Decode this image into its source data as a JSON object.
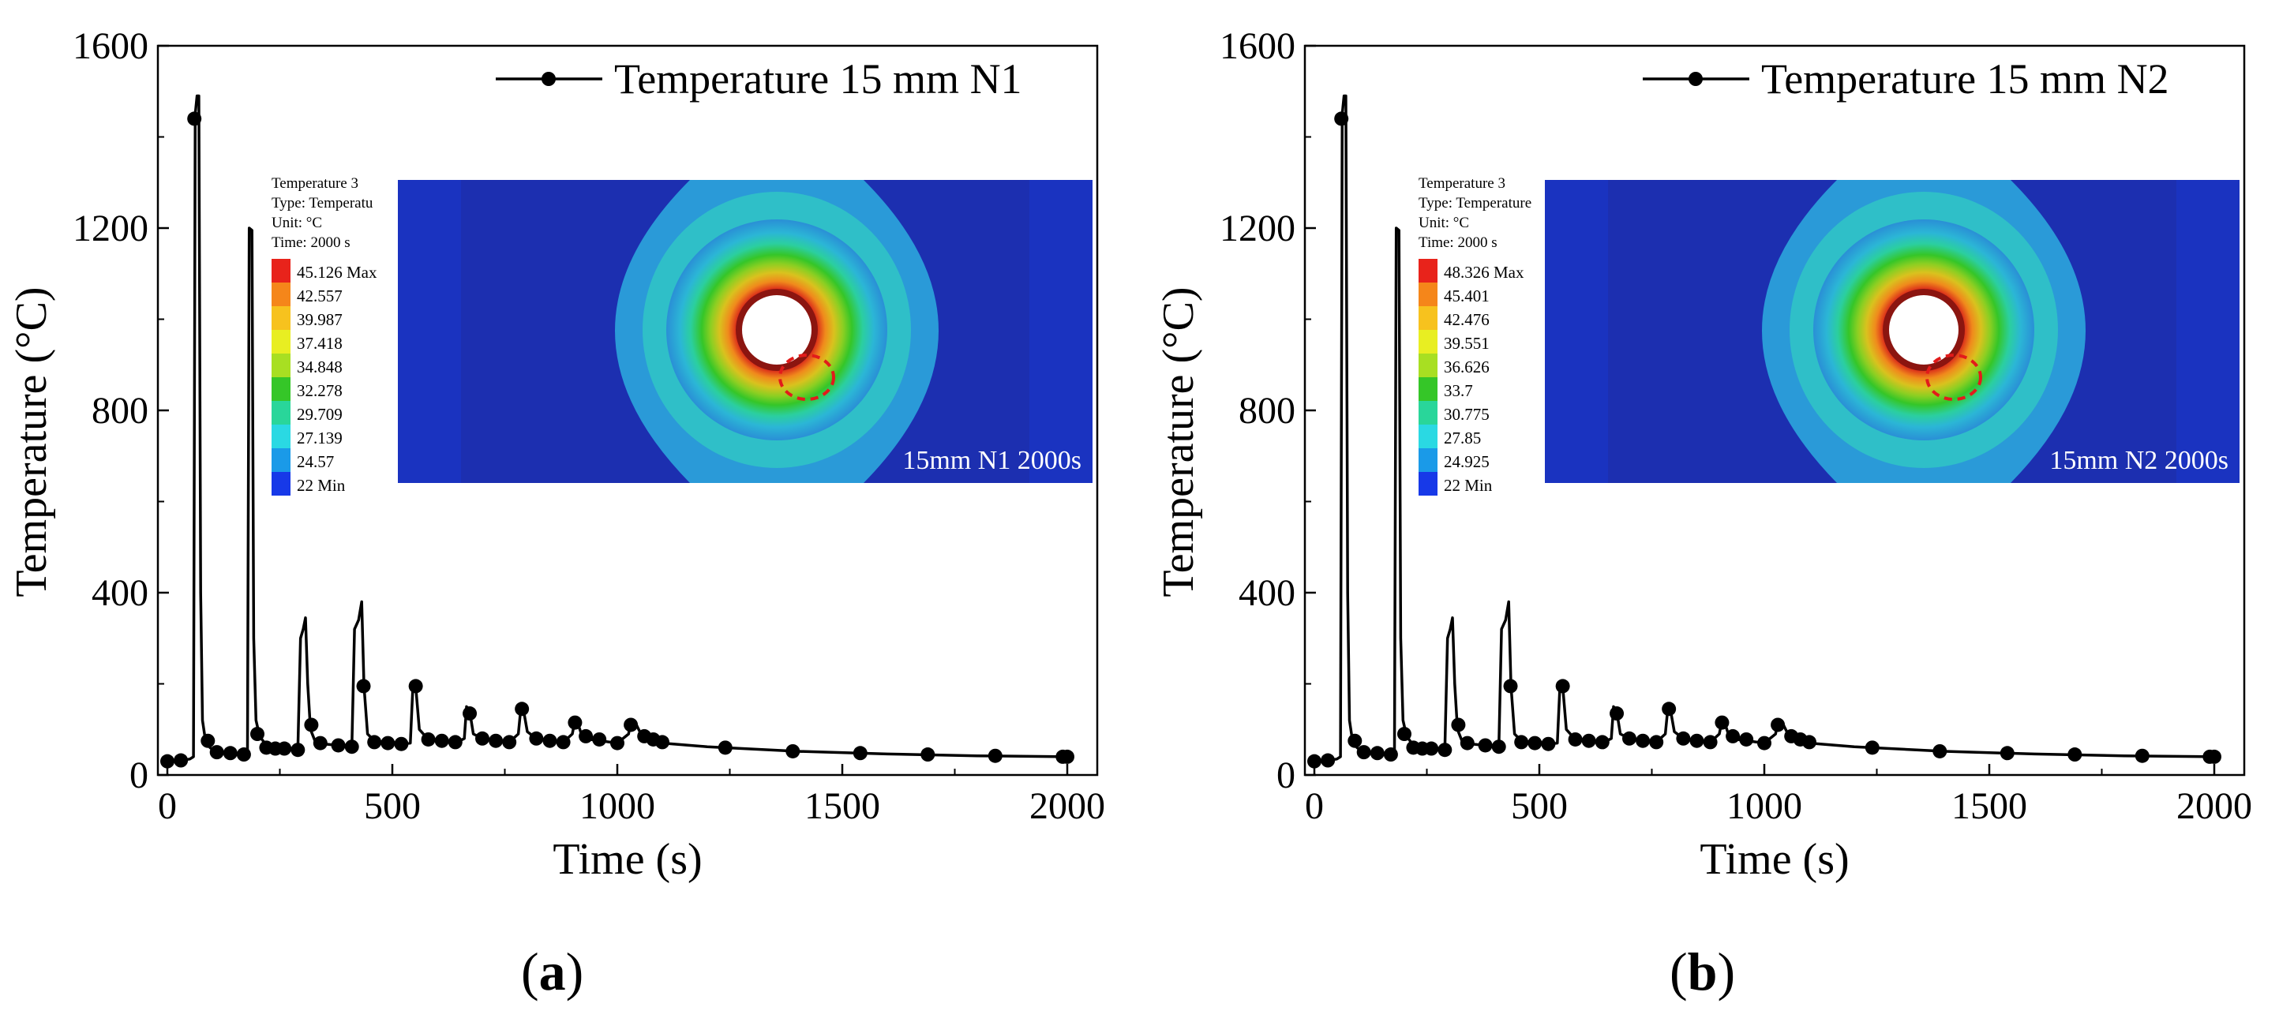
{
  "chart_data": [
    {
      "type": "line",
      "panel_label": "a",
      "xlabel": "Time (s)",
      "ylabel": "Temperature (°C)",
      "xlim": [
        0,
        2000
      ],
      "ylim": [
        0,
        1600
      ],
      "xticks": [
        "0",
        "500",
        "1000",
        "1500",
        "2000"
      ],
      "yticks": [
        "0",
        "400",
        "800",
        "1200",
        "1600"
      ],
      "legend": "Temperature 15 mm N1",
      "series": [
        {
          "name": "Temperature 15 mm N1",
          "line": [
            [
              0,
              30
            ],
            [
              30,
              32
            ],
            [
              50,
              35
            ],
            [
              58,
              40
            ],
            [
              62,
              1450
            ],
            [
              66,
              1490
            ],
            [
              70,
              1490
            ],
            [
              74,
              400
            ],
            [
              78,
              120
            ],
            [
              84,
              80
            ],
            [
              95,
              60
            ],
            [
              110,
              50
            ],
            [
              140,
              48
            ],
            [
              170,
              45
            ],
            [
              178,
              55
            ],
            [
              182,
              1200
            ],
            [
              188,
              1195
            ],
            [
              192,
              300
            ],
            [
              197,
              120
            ],
            [
              205,
              85
            ],
            [
              220,
              65
            ],
            [
              260,
              58
            ],
            [
              290,
              55
            ],
            [
              296,
              300
            ],
            [
              302,
              320
            ],
            [
              307,
              345
            ],
            [
              312,
              200
            ],
            [
              318,
              100
            ],
            [
              330,
              70
            ],
            [
              380,
              65
            ],
            [
              410,
              60
            ],
            [
              416,
              320
            ],
            [
              425,
              340
            ],
            [
              432,
              380
            ],
            [
              437,
              195
            ],
            [
              445,
              90
            ],
            [
              460,
              75
            ],
            [
              520,
              68
            ],
            [
              540,
              70
            ],
            [
              546,
              200
            ],
            [
              552,
              195
            ],
            [
              560,
              100
            ],
            [
              580,
              78
            ],
            [
              640,
              70
            ],
            [
              660,
              80
            ],
            [
              665,
              150
            ],
            [
              672,
              140
            ],
            [
              680,
              90
            ],
            [
              700,
              80
            ],
            [
              760,
              72
            ],
            [
              780,
              90
            ],
            [
              786,
              150
            ],
            [
              792,
              140
            ],
            [
              800,
              95
            ],
            [
              820,
              80
            ],
            [
              880,
              72
            ],
            [
              900,
              90
            ],
            [
              906,
              120
            ],
            [
              912,
              115
            ],
            [
              920,
              90
            ],
            [
              940,
              78
            ],
            [
              1000,
              70
            ],
            [
              1025,
              90
            ],
            [
              1030,
              120
            ],
            [
              1040,
              115
            ],
            [
              1050,
              95
            ],
            [
              1070,
              82
            ],
            [
              1100,
              70
            ],
            [
              1200,
              62
            ],
            [
              1400,
              52
            ],
            [
              1600,
              46
            ],
            [
              1800,
              42
            ],
            [
              2000,
              40
            ]
          ],
          "markers": [
            [
              0,
              30
            ],
            [
              30,
              32
            ],
            [
              60,
              1440
            ],
            [
              90,
              75
            ],
            [
              110,
              50
            ],
            [
              140,
              48
            ],
            [
              170,
              45
            ],
            [
              200,
              90
            ],
            [
              220,
              60
            ],
            [
              240,
              58
            ],
            [
              260,
              58
            ],
            [
              290,
              55
            ],
            [
              320,
              110
            ],
            [
              340,
              70
            ],
            [
              380,
              65
            ],
            [
              410,
              62
            ],
            [
              436,
              195
            ],
            [
              460,
              72
            ],
            [
              490,
              70
            ],
            [
              520,
              68
            ],
            [
              552,
              195
            ],
            [
              580,
              78
            ],
            [
              610,
              75
            ],
            [
              640,
              72
            ],
            [
              672,
              135
            ],
            [
              700,
              80
            ],
            [
              730,
              75
            ],
            [
              760,
              72
            ],
            [
              788,
              145
            ],
            [
              820,
              80
            ],
            [
              850,
              75
            ],
            [
              880,
              72
            ],
            [
              906,
              115
            ],
            [
              930,
              85
            ],
            [
              960,
              78
            ],
            [
              1000,
              70
            ],
            [
              1030,
              110
            ],
            [
              1060,
              85
            ],
            [
              1080,
              78
            ],
            [
              1100,
              72
            ],
            [
              1240,
              60
            ],
            [
              1390,
              52
            ],
            [
              1540,
              48
            ],
            [
              1690,
              45
            ],
            [
              1840,
              42
            ],
            [
              1990,
              40
            ],
            [
              2000,
              40
            ]
          ]
        }
      ],
      "inset": {
        "legend_title": "Temperature 3",
        "legend_type": "Type: Temperatu",
        "legend_unit": "Unit: °C",
        "legend_time": "Time: 2000 s",
        "levels": [
          "45.126 Max",
          "42.557",
          "39.987",
          "37.418",
          "34.848",
          "32.278",
          "29.709",
          "27.139",
          "24.57",
          "22 Min"
        ],
        "level_colors": [
          "#e8231b",
          "#f5861a",
          "#f7c21e",
          "#e8ee22",
          "#a8df22",
          "#35c628",
          "#29d69a",
          "#2ad9e3",
          "#1a9ae8",
          "#1739e8"
        ],
        "caption": "15mm N1 2000s"
      }
    },
    {
      "type": "line",
      "panel_label": "b",
      "xlabel": "Time (s)",
      "ylabel": "Temperature (°C)",
      "xlim": [
        0,
        2000
      ],
      "ylim": [
        0,
        1600
      ],
      "xticks": [
        "0",
        "500",
        "1000",
        "1500",
        "2000"
      ],
      "yticks": [
        "0",
        "400",
        "800",
        "1200",
        "1600"
      ],
      "legend": "Temperature 15 mm N2",
      "series": [
        {
          "name": "Temperature 15 mm N2",
          "line": [
            [
              0,
              30
            ],
            [
              30,
              32
            ],
            [
              50,
              35
            ],
            [
              58,
              40
            ],
            [
              62,
              1450
            ],
            [
              66,
              1490
            ],
            [
              70,
              1490
            ],
            [
              74,
              400
            ],
            [
              78,
              120
            ],
            [
              84,
              80
            ],
            [
              95,
              60
            ],
            [
              110,
              50
            ],
            [
              140,
              48
            ],
            [
              170,
              45
            ],
            [
              178,
              55
            ],
            [
              182,
              1200
            ],
            [
              188,
              1195
            ],
            [
              192,
              300
            ],
            [
              197,
              120
            ],
            [
              205,
              85
            ],
            [
              220,
              65
            ],
            [
              260,
              58
            ],
            [
              290,
              55
            ],
            [
              296,
              300
            ],
            [
              302,
              320
            ],
            [
              307,
              345
            ],
            [
              312,
              200
            ],
            [
              318,
              100
            ],
            [
              330,
              70
            ],
            [
              380,
              65
            ],
            [
              410,
              60
            ],
            [
              416,
              320
            ],
            [
              425,
              340
            ],
            [
              432,
              380
            ],
            [
              437,
              195
            ],
            [
              445,
              90
            ],
            [
              460,
              75
            ],
            [
              520,
              68
            ],
            [
              540,
              70
            ],
            [
              546,
              200
            ],
            [
              552,
              195
            ],
            [
              560,
              100
            ],
            [
              580,
              78
            ],
            [
              640,
              70
            ],
            [
              660,
              80
            ],
            [
              665,
              150
            ],
            [
              672,
              140
            ],
            [
              680,
              90
            ],
            [
              700,
              80
            ],
            [
              760,
              72
            ],
            [
              780,
              90
            ],
            [
              786,
              150
            ],
            [
              792,
              140
            ],
            [
              800,
              95
            ],
            [
              820,
              80
            ],
            [
              880,
              72
            ],
            [
              900,
              90
            ],
            [
              906,
              120
            ],
            [
              912,
              115
            ],
            [
              920,
              90
            ],
            [
              940,
              78
            ],
            [
              1000,
              70
            ],
            [
              1025,
              90
            ],
            [
              1030,
              120
            ],
            [
              1040,
              115
            ],
            [
              1050,
              95
            ],
            [
              1070,
              82
            ],
            [
              1100,
              70
            ],
            [
              1200,
              62
            ],
            [
              1400,
              52
            ],
            [
              1600,
              46
            ],
            [
              1800,
              42
            ],
            [
              2000,
              40
            ]
          ],
          "markers": [
            [
              0,
              30
            ],
            [
              30,
              32
            ],
            [
              60,
              1440
            ],
            [
              90,
              75
            ],
            [
              110,
              50
            ],
            [
              140,
              48
            ],
            [
              170,
              45
            ],
            [
              200,
              90
            ],
            [
              220,
              60
            ],
            [
              240,
              58
            ],
            [
              260,
              58
            ],
            [
              290,
              55
            ],
            [
              320,
              110
            ],
            [
              340,
              70
            ],
            [
              380,
              65
            ],
            [
              410,
              62
            ],
            [
              436,
              195
            ],
            [
              460,
              72
            ],
            [
              490,
              70
            ],
            [
              520,
              68
            ],
            [
              552,
              195
            ],
            [
              580,
              78
            ],
            [
              610,
              75
            ],
            [
              640,
              72
            ],
            [
              672,
              135
            ],
            [
              700,
              80
            ],
            [
              730,
              75
            ],
            [
              760,
              72
            ],
            [
              788,
              145
            ],
            [
              820,
              80
            ],
            [
              850,
              75
            ],
            [
              880,
              72
            ],
            [
              906,
              115
            ],
            [
              930,
              85
            ],
            [
              960,
              78
            ],
            [
              1000,
              70
            ],
            [
              1030,
              110
            ],
            [
              1060,
              85
            ],
            [
              1080,
              78
            ],
            [
              1100,
              72
            ],
            [
              1240,
              60
            ],
            [
              1390,
              52
            ],
            [
              1540,
              48
            ],
            [
              1690,
              45
            ],
            [
              1840,
              42
            ],
            [
              1990,
              40
            ],
            [
              2000,
              40
            ]
          ]
        }
      ],
      "inset": {
        "legend_title": "Temperature 3",
        "legend_type": "Type: Temperature",
        "legend_unit": "Unit: °C",
        "legend_time": "Time: 2000 s",
        "levels": [
          "48.326 Max",
          "45.401",
          "42.476",
          "39.551",
          "36.626",
          "33.7",
          "30.775",
          "27.85",
          "24.925",
          "22 Min"
        ],
        "level_colors": [
          "#e8231b",
          "#f5861a",
          "#f7c21e",
          "#e8ee22",
          "#a8df22",
          "#35c628",
          "#29d69a",
          "#2ad9e3",
          "#1a9ae8",
          "#1739e8"
        ],
        "caption": "15mm N2 2000s"
      }
    }
  ]
}
